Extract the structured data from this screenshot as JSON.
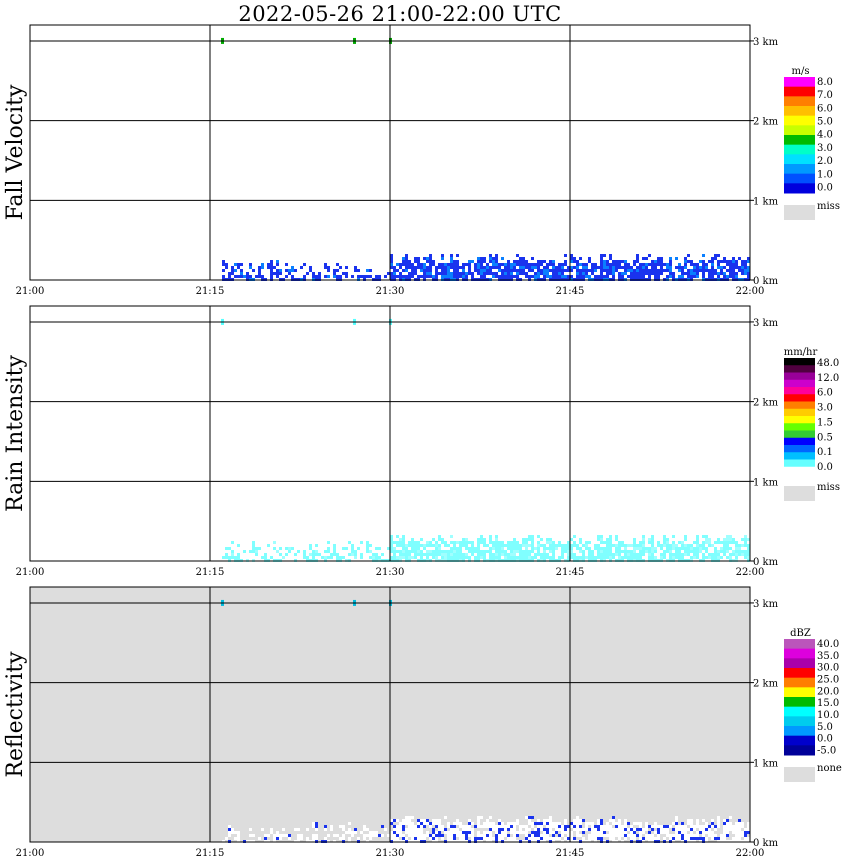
{
  "title": "2022-05-26  21:00-22:00 UTC",
  "x_ticks": [
    "21:00",
    "21:15",
    "21:30",
    "21:45",
    "22:00"
  ],
  "height_ticks": [
    "3 km",
    "2 km",
    "1 km",
    "0 km"
  ],
  "colors": {
    "grid": "#000000",
    "missing_gray": "#dddddd"
  },
  "panels": [
    {
      "ylabel": "Fall Velocity",
      "background": "#ffffff",
      "legend": {
        "unit": "m/s",
        "labels": [
          "8.0",
          "7.0",
          "6.0",
          "5.0",
          "4.0",
          "3.0",
          "2.0",
          "1.0",
          "0.0"
        ],
        "colors": [
          "#ff00ff",
          "#ff0000",
          "#ff7f00",
          "#ffbf00",
          "#ffff00",
          "#c8ff00",
          "#00bb00",
          "#00ffc8",
          "#00e0ff",
          "#0099ff",
          "#0050ff",
          "#0000dd"
        ],
        "missing_label": "miss"
      },
      "echo_color": "#1a33ee",
      "echo_color_alt": "#0a7fff",
      "top_marks_color": "#00aa00"
    },
    {
      "ylabel": "Rain Intensity",
      "background": "#ffffff",
      "legend": {
        "unit": "mm/hr",
        "labels": [
          "48.0",
          "12.0",
          "6.0",
          "3.0",
          "1.5",
          "0.5",
          "0.1",
          "0.0"
        ],
        "colors": [
          "#000000",
          "#500040",
          "#990099",
          "#cc00cc",
          "#ff0099",
          "#ff0000",
          "#ff7f00",
          "#ffcc00",
          "#ffff00",
          "#66ff00",
          "#33cc33",
          "#0000ff",
          "#0066ff",
          "#00bfff",
          "#66ffff",
          "#ffffff"
        ],
        "missing_label": "miss"
      },
      "echo_color": "#80ffff",
      "echo_color_alt": "#a0ffff",
      "top_marks_color": "#55ffff"
    },
    {
      "ylabel": "Reflectivity",
      "background": "#dddddd",
      "legend": {
        "unit": "dBZ",
        "labels": [
          "40.0",
          "35.0",
          "30.0",
          "25.0",
          "20.0",
          "15.0",
          "10.0",
          "5.0",
          "0.0",
          "-5.0"
        ],
        "colors": [
          "#bb55bb",
          "#dd00dd",
          "#aa00aa",
          "#ff0000",
          "#ff7f00",
          "#ffff00",
          "#00bb00",
          "#00ffff",
          "#00ccee",
          "#0099ff",
          "#0000cc",
          "#000099"
        ],
        "missing_label": "none"
      },
      "echo_color": "#ffffff",
      "echo_color_alt": "#1a33ee",
      "top_marks_color": "#00bbdd"
    }
  ],
  "chart_data": {
    "type": "heatmap",
    "x_axis": "time (UTC)",
    "xlim": [
      "21:00",
      "22:00"
    ],
    "ylim_km": [
      0,
      3.2
    ],
    "grid": true,
    "echo_band_height_km": [
      0,
      0.4
    ],
    "echo_start": "21:16",
    "echo_end": "22:00",
    "sparse_period": [
      "21:16",
      "21:30"
    ],
    "dense_period": [
      "21:30",
      "22:00"
    ],
    "top_marks_height_km": 3,
    "top_marks_times": [
      "21:16",
      "21:27",
      "21:30"
    ]
  }
}
